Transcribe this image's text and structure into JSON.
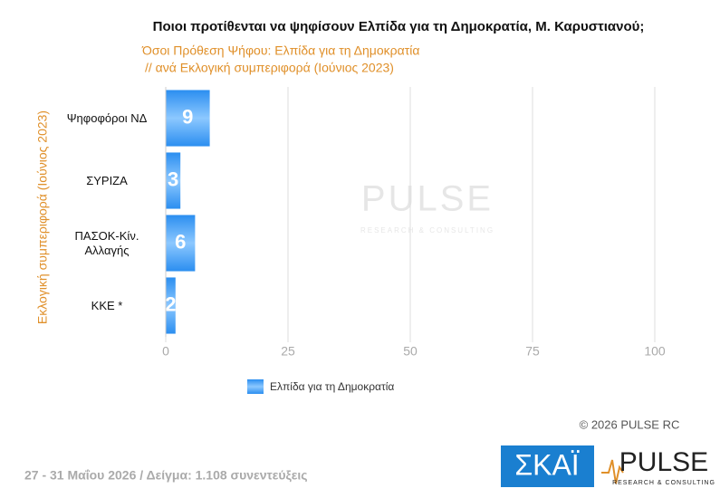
{
  "chart_data": {
    "type": "barh",
    "title": "Ποιοι προτίθενται να ψηφίσουν Ελπίδα για τη Δημοκρατία, Μ. Καρυστιανού;",
    "subtitle": [
      "Όσοι Πρόθεση Ψήφου: Ελπίδα για τη Δημοκρατία",
      "// ανά Εκλογική  συμπεριφορά (Ιούνιος 2023)"
    ],
    "ylabel": "Εκλογική  συμπεριφορά (Ιούνιος 2023)",
    "categories": [
      "Ψηφοφόροι ΝΔ",
      "ΣΥΡΙΖΑ",
      "ΠΑΣΟΚ-Κίν. Αλλαγής",
      "ΚΚΕ *"
    ],
    "series": [
      {
        "name": "Ελπίδα για τη Δημοκρατία",
        "color": "#2b8ef0",
        "values": [
          9,
          3,
          6,
          2
        ]
      }
    ],
    "xlim": [
      0,
      100
    ],
    "xticks": [
      0,
      25,
      50,
      75,
      100
    ],
    "grid": true,
    "legend": "bottom",
    "copyright": "©  2026  PULSE RC",
    "footer": "27 - 31  Μαΐου 2026  /  Δείγμα:  1.108 συνεντεύξεις",
    "logos": {
      "skai": "ΣΚΑΪ",
      "pulse": "PULSE",
      "pulse_sub": "RESEARCH & CONSULTING"
    }
  }
}
